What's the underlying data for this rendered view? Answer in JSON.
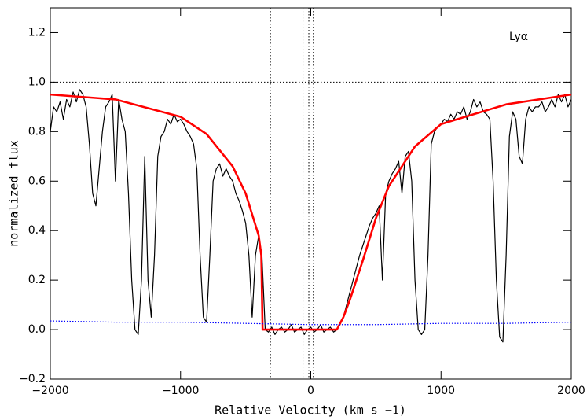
{
  "chart_data": {
    "type": "line",
    "xlabel": "Relative Velocity (km s −1)",
    "ylabel": "normalized flux",
    "annotation": "Lyα",
    "xlim": [
      -2000,
      2000
    ],
    "ylim": [
      -0.2,
      1.3
    ],
    "xticks": [
      {
        "value": -2000,
        "label": "−2000"
      },
      {
        "value": -1000,
        "label": "−1000"
      },
      0,
      1000,
      2000
    ],
    "yticks": [
      {
        "value": -0.2,
        "label": "−0.2"
      },
      {
        "value": 0,
        "label": "0.0"
      },
      {
        "value": 0.2,
        "label": "0.2"
      },
      {
        "value": 0.4,
        "label": "0.4"
      },
      {
        "value": 0.6,
        "label": "0.6"
      },
      {
        "value": 0.8,
        "label": "0.8"
      },
      {
        "value": 1.0,
        "label": "1.0"
      },
      {
        "value": 1.2,
        "label": "1.2"
      }
    ],
    "vlines": [
      -310,
      -60,
      -15,
      20
    ],
    "hlines": [
      1.0
    ],
    "series": [
      {
        "color": "#000000",
        "width": 1.2,
        "style": "solid",
        "x": [
          -2000,
          -1975,
          -1950,
          -1925,
          -1900,
          -1875,
          -1850,
          -1825,
          -1800,
          -1775,
          -1750,
          -1725,
          -1700,
          -1675,
          -1650,
          -1625,
          -1600,
          -1575,
          -1550,
          -1525,
          -1500,
          -1475,
          -1450,
          -1425,
          -1400,
          -1375,
          -1350,
          -1325,
          -1300,
          -1275,
          -1250,
          -1225,
          -1200,
          -1175,
          -1150,
          -1125,
          -1100,
          -1075,
          -1050,
          -1025,
          -1000,
          -975,
          -950,
          -925,
          -900,
          -875,
          -850,
          -825,
          -800,
          -775,
          -750,
          -725,
          -700,
          -675,
          -650,
          -625,
          -600,
          -575,
          -550,
          -525,
          -500,
          -475,
          -450,
          -425,
          -400,
          -375,
          -350,
          -325,
          -300,
          -275,
          -250,
          -225,
          -200,
          -175,
          -150,
          -125,
          -100,
          -75,
          -50,
          -25,
          0,
          25,
          50,
          75,
          100,
          125,
          150,
          175,
          200,
          225,
          250,
          275,
          300,
          325,
          350,
          375,
          400,
          425,
          450,
          475,
          500,
          525,
          550,
          575,
          600,
          625,
          650,
          675,
          700,
          725,
          750,
          775,
          800,
          825,
          850,
          875,
          900,
          925,
          950,
          975,
          1000,
          1025,
          1050,
          1075,
          1100,
          1125,
          1150,
          1175,
          1200,
          1225,
          1250,
          1275,
          1300,
          1325,
          1350,
          1375,
          1400,
          1425,
          1450,
          1475,
          1500,
          1525,
          1550,
          1575,
          1600,
          1625,
          1650,
          1675,
          1700,
          1725,
          1750,
          1775,
          1800,
          1825,
          1850,
          1875,
          1900,
          1925,
          1950,
          1975,
          2000
        ],
        "values": [
          0.8,
          0.9,
          0.88,
          0.92,
          0.85,
          0.93,
          0.9,
          0.96,
          0.92,
          0.97,
          0.95,
          0.9,
          0.75,
          0.55,
          0.5,
          0.65,
          0.8,
          0.9,
          0.92,
          0.95,
          0.6,
          0.93,
          0.85,
          0.8,
          0.55,
          0.2,
          0.0,
          -0.02,
          0.2,
          0.7,
          0.2,
          0.05,
          0.3,
          0.7,
          0.78,
          0.8,
          0.85,
          0.83,
          0.87,
          0.84,
          0.85,
          0.83,
          0.8,
          0.78,
          0.75,
          0.65,
          0.3,
          0.05,
          0.03,
          0.3,
          0.6,
          0.65,
          0.67,
          0.62,
          0.65,
          0.62,
          0.6,
          0.55,
          0.52,
          0.48,
          0.43,
          0.3,
          0.05,
          0.3,
          0.38,
          0.3,
          0.0,
          -0.01,
          0.01,
          -0.02,
          0.0,
          0.01,
          -0.01,
          0.0,
          0.02,
          -0.01,
          0.0,
          0.01,
          -0.02,
          0.0,
          0.01,
          -0.01,
          0.0,
          0.02,
          -0.01,
          0.0,
          0.01,
          -0.01,
          0.0,
          0.02,
          0.05,
          0.1,
          0.15,
          0.2,
          0.25,
          0.3,
          0.34,
          0.38,
          0.42,
          0.45,
          0.47,
          0.5,
          0.2,
          0.55,
          0.6,
          0.63,
          0.65,
          0.68,
          0.55,
          0.7,
          0.72,
          0.6,
          0.2,
          0.0,
          -0.02,
          0.0,
          0.3,
          0.75,
          0.8,
          0.82,
          0.83,
          0.85,
          0.84,
          0.87,
          0.85,
          0.88,
          0.87,
          0.9,
          0.85,
          0.88,
          0.93,
          0.9,
          0.92,
          0.88,
          0.87,
          0.85,
          0.6,
          0.2,
          -0.03,
          -0.05,
          0.3,
          0.78,
          0.88,
          0.85,
          0.7,
          0.67,
          0.85,
          0.9,
          0.88,
          0.9,
          0.9,
          0.92,
          0.88,
          0.9,
          0.93,
          0.9,
          0.95,
          0.92,
          0.95,
          0.9,
          0.93
        ]
      },
      {
        "color": "#ff0000",
        "width": 2.6,
        "style": "solid",
        "x": [
          -2000,
          -1500,
          -1000,
          -800,
          -600,
          -500,
          -400,
          -380,
          -370,
          200,
          250,
          300,
          400,
          500,
          600,
          800,
          1000,
          1500,
          2000
        ],
        "values": [
          0.95,
          0.93,
          0.86,
          0.79,
          0.66,
          0.55,
          0.38,
          0.3,
          0.0,
          0.0,
          0.05,
          0.12,
          0.28,
          0.45,
          0.58,
          0.74,
          0.83,
          0.91,
          0.95
        ]
      },
      {
        "color": "#0000ff",
        "width": 1.2,
        "style": "dotted",
        "x": [
          -2000,
          -1500,
          -1000,
          -500,
          0,
          500,
          1000,
          1500,
          2000
        ],
        "values": [
          0.035,
          0.03,
          0.03,
          0.025,
          0.02,
          0.02,
          0.025,
          0.025,
          0.03
        ]
      }
    ]
  }
}
